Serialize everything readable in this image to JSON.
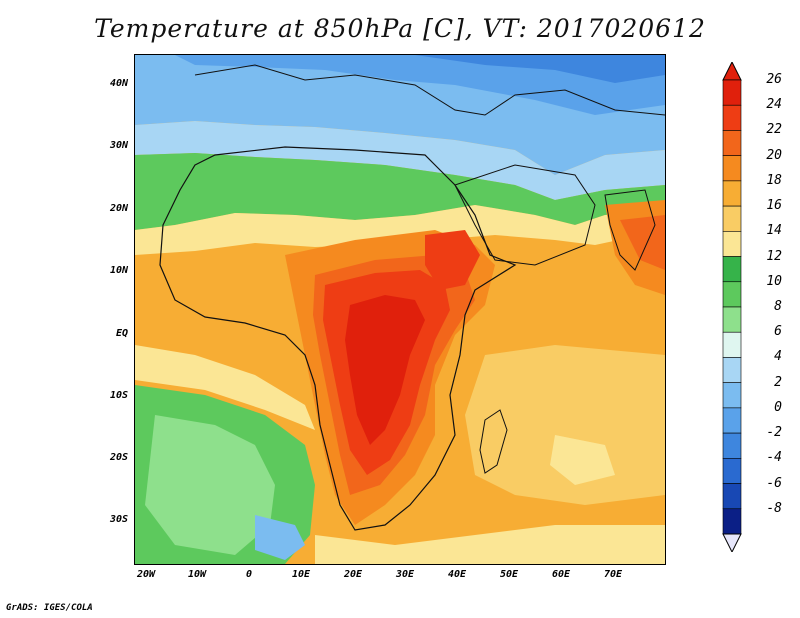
{
  "title": "Temperature at 850hPa [C], VT: 2017020612",
  "credit": "GrADS: IGES/COLA",
  "map": {
    "lat_labels": [
      "40N",
      "30N",
      "20N",
      "10N",
      "EQ",
      "10S",
      "20S",
      "30S"
    ],
    "lon_labels": [
      "20W",
      "10W",
      "0",
      "10E",
      "20E",
      "30E",
      "40E",
      "50E",
      "60E",
      "70E"
    ]
  },
  "colorbar": {
    "labels": [
      "26",
      "24",
      "22",
      "20",
      "18",
      "16",
      "14",
      "12",
      "10",
      "8",
      "6",
      "4",
      "2",
      "0",
      "-2",
      "-4",
      "-6",
      "-8"
    ],
    "colors": [
      "#e0200c",
      "#ee3d14",
      "#f2661b",
      "#f58a1f",
      "#f7ad34",
      "#f9cc64",
      "#fbe695",
      "#36b34a",
      "#5dc95d",
      "#8ee08c",
      "#dff6f0",
      "#a8d6f4",
      "#7bbcf0",
      "#5aa2ea",
      "#3e86de",
      "#2a6ad0",
      "#1848b4",
      "#0b1f86"
    ],
    "over_color": "#e0200c",
    "under_color": "#e6e6fa"
  }
}
